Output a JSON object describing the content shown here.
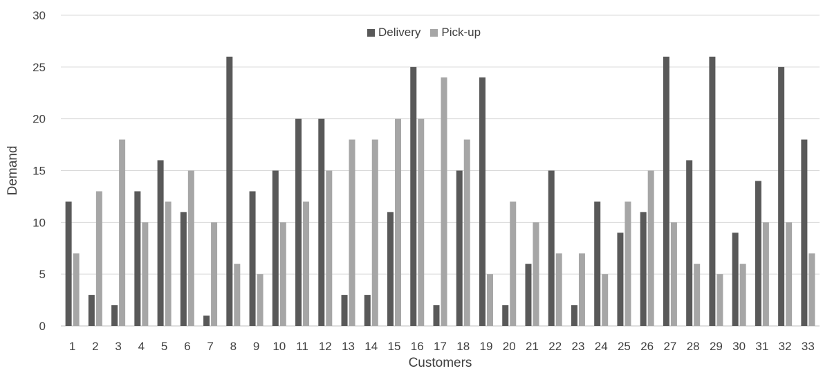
{
  "chart_data": {
    "type": "bar",
    "title": "",
    "xlabel": "Customers",
    "ylabel": "Demand",
    "ylim": [
      0,
      30
    ],
    "yticks": [
      0,
      5,
      10,
      15,
      20,
      25,
      30
    ],
    "grid": true,
    "legend_position": "top-center",
    "categories": [
      "1",
      "2",
      "3",
      "4",
      "5",
      "6",
      "7",
      "8",
      "9",
      "10",
      "11",
      "12",
      "13",
      "14",
      "15",
      "16",
      "17",
      "18",
      "19",
      "20",
      "21",
      "22",
      "23",
      "24",
      "25",
      "26",
      "27",
      "28",
      "29",
      "30",
      "31",
      "32",
      "33"
    ],
    "series": [
      {
        "name": "Delivery",
        "color": "#595959",
        "values": [
          12,
          3,
          2,
          13,
          16,
          11,
          1,
          26,
          13,
          15,
          20,
          20,
          3,
          3,
          11,
          25,
          2,
          15,
          24,
          2,
          6,
          15,
          2,
          12,
          9,
          11,
          26,
          16,
          26,
          9,
          14,
          25,
          18
        ]
      },
      {
        "name": "Pick-up",
        "color": "#a6a6a6",
        "values": [
          7,
          13,
          18,
          10,
          12,
          15,
          10,
          6,
          5,
          10,
          12,
          15,
          18,
          18,
          20,
          20,
          24,
          18,
          5,
          12,
          10,
          7,
          7,
          5,
          12,
          15,
          10,
          6,
          5,
          6,
          10,
          10,
          7
        ]
      }
    ]
  }
}
